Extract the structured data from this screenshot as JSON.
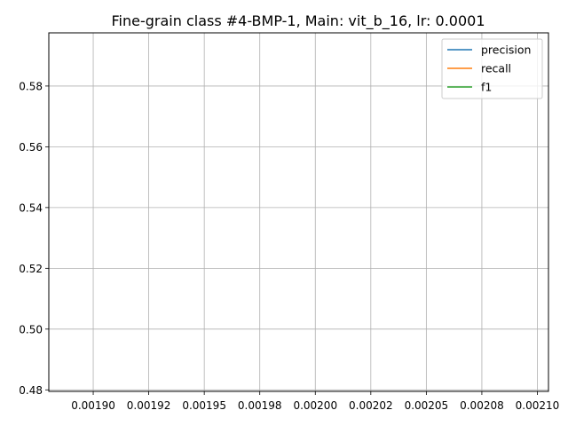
{
  "chart_data": {
    "type": "line",
    "title": "Fine-grain class #4-BMP-1, Main: vit_b_16, lr: 0.0001",
    "xlabel": "",
    "ylabel": "",
    "xlim": [
      0.00188,
      0.002105
    ],
    "ylim": [
      0.4795,
      0.5975
    ],
    "x_ticks": [
      0.0019,
      0.001925,
      0.00195,
      0.001975,
      0.002,
      0.002025,
      0.00205,
      0.002075,
      0.0021
    ],
    "x_tick_labels": [
      "0.00190",
      "0.00192",
      "0.00195",
      "0.00198",
      "0.00200",
      "0.00202",
      "0.00205",
      "0.00208",
      "0.00210"
    ],
    "y_ticks": [
      0.48,
      0.5,
      0.52,
      0.54,
      0.56,
      0.58
    ],
    "y_tick_labels": [
      "0.48",
      "0.50",
      "0.52",
      "0.54",
      "0.56",
      "0.58"
    ],
    "grid": true,
    "legend_position": "top-right",
    "series": [
      {
        "name": "precision",
        "color": "#1f77b4",
        "x": [],
        "y": []
      },
      {
        "name": "recall",
        "color": "#ff7f0e",
        "x": [],
        "y": []
      },
      {
        "name": "f1",
        "color": "#2ca02c",
        "x": [],
        "y": []
      }
    ]
  }
}
